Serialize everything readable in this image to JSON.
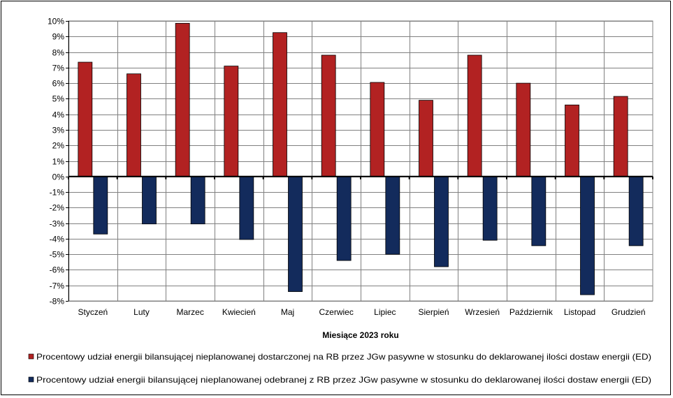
{
  "chart_data": {
    "type": "bar",
    "title": "",
    "xlabel": "Miesiące 2023  roku",
    "ylabel": "",
    "ylim": [
      -8,
      10
    ],
    "ytick_step": 1,
    "y_unit": "%",
    "grid": true,
    "legend_position": "bottom",
    "categories": [
      "Styczeń",
      "Luty",
      "Marzec",
      "Kwiecień",
      "Maj",
      "Czerwiec",
      "Lipiec",
      "Sierpień",
      "Wrzesień",
      "Październik",
      "Listopad",
      "Grudzień"
    ],
    "series": [
      {
        "name": "Procentowy udział energii bilansującej nieplanowanej dostarczonej na RB przez JGw pasywne w stosunku do deklarowanej ilości dostaw energii (ED)",
        "color": "#B22222",
        "values": [
          7.35,
          6.6,
          9.85,
          7.1,
          9.25,
          7.8,
          6.05,
          4.9,
          7.8,
          6.0,
          4.6,
          5.15
        ]
      },
      {
        "name": "Procentowy udział energii bilansującej nieplanowanej odebranej z RB przez JGw pasywne w stosunku do deklarowanej ilości dostaw energii (ED)",
        "color": "#132B5C",
        "values": [
          -3.7,
          -3.05,
          -3.05,
          -4.05,
          -7.4,
          -5.4,
          -5.0,
          -5.8,
          -4.1,
          -4.45,
          -7.6,
          -4.45
        ]
      }
    ]
  }
}
